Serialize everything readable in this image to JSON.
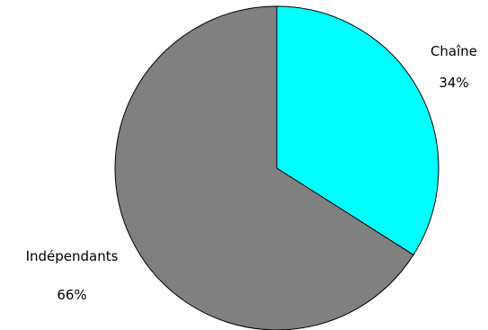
{
  "chart_data": {
    "type": "pie",
    "title": "",
    "start_angle_deg": 0,
    "direction": "clockwise",
    "legend": "none",
    "slices": [
      {
        "label": "Chaîne",
        "value": 34,
        "percent_label": "34%",
        "color": "#00FFFF"
      },
      {
        "label": "Indépendants",
        "value": 66,
        "percent_label": "66%",
        "color": "#808080"
      }
    ],
    "stroke_color": "#000000"
  }
}
